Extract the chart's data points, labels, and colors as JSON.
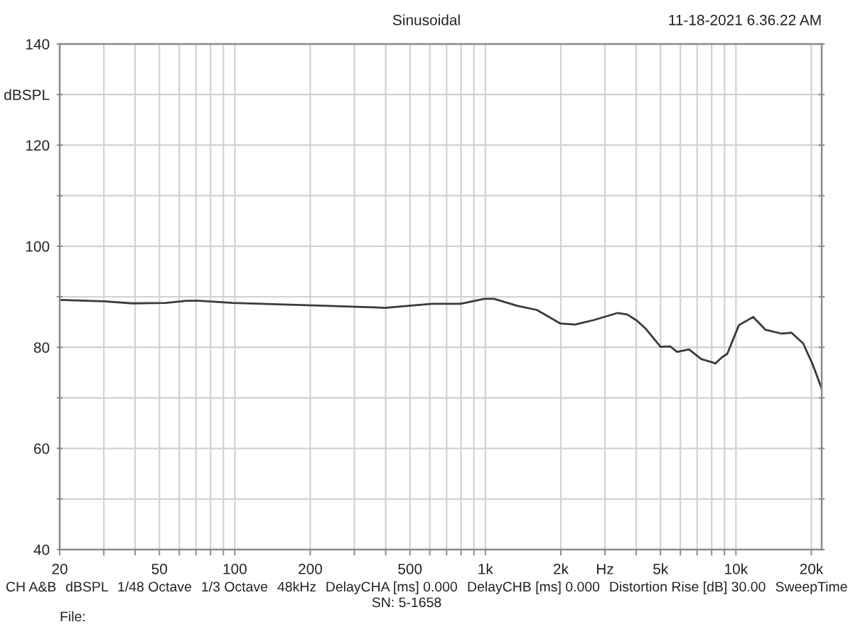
{
  "chart_data": {
    "type": "line",
    "title": "Sinusoidal",
    "annotations": [
      "11-18-2021 6.36.22 AM",
      "CH A&B",
      "dBSPL",
      "1/48 Octave",
      "1/3 Octave",
      "48kHz",
      "DelayCHA [ms] 0.000",
      "DelayCHB [ms] 0.000",
      "Distortion Rise [dB] 30.00",
      "SweepTime",
      "SN: 5-1658",
      "File:"
    ],
    "x": [
      20,
      30,
      39,
      53,
      64,
      72,
      98,
      205,
      362,
      396,
      613,
      796,
      889,
      991,
      1082,
      1346,
      1604,
      1994,
      2274,
      2712,
      3372,
      3682,
      4020,
      4380,
      5000,
      5460,
      5820,
      6500,
      7260,
      8090,
      8270,
      8830,
      9230,
      10280,
      11720,
      13100,
      15240,
      16640,
      18540,
      20260,
      22000
    ],
    "values": [
      89.4,
      89.1,
      88.7,
      88.8,
      89.2,
      89.2,
      88.8,
      88.3,
      87.9,
      87.8,
      88.6,
      88.6,
      89.1,
      89.6,
      89.6,
      88.2,
      87.4,
      84.7,
      84.5,
      85.4,
      86.8,
      86.5,
      85.3,
      83.6,
      80.1,
      80.2,
      79.1,
      79.6,
      77.7,
      77.0,
      76.8,
      78.1,
      78.7,
      84.4,
      86.0,
      83.5,
      82.7,
      82.9,
      80.8,
      76.6,
      71.8
    ],
    "color": "#3a3a3a",
    "log": "x",
    "grid": true,
    "xlim": [
      20,
      22000
    ],
    "xticks": [
      20,
      {
        "value": 30,
        "label": null
      },
      {
        "value": 40,
        "label": null
      },
      50,
      {
        "value": 60,
        "label": null
      },
      {
        "value": 70,
        "label": null
      },
      {
        "value": 80,
        "label": null
      },
      {
        "value": 90,
        "label": null
      },
      100,
      200,
      {
        "value": 300,
        "label": null
      },
      {
        "value": 400,
        "label": null
      },
      500,
      {
        "value": 600,
        "label": null
      },
      {
        "value": 700,
        "label": null
      },
      {
        "value": 800,
        "label": null
      },
      {
        "value": 900,
        "label": null
      },
      {
        "value": 1000,
        "label": "1k"
      },
      {
        "value": 2000,
        "label": "2k"
      },
      {
        "value": 3000,
        "label": "Hz"
      },
      {
        "value": 4000,
        "label": null
      },
      {
        "value": 5000,
        "label": "5k"
      },
      {
        "value": 6000,
        "label": null
      },
      {
        "value": 7000,
        "label": null
      },
      {
        "value": 8000,
        "label": null
      },
      {
        "value": 9000,
        "label": null
      },
      {
        "value": 10000,
        "label": "10k"
      },
      {
        "value": 20000,
        "label": "20k"
      }
    ],
    "ylim": [
      40,
      140
    ],
    "yticks": [
      40,
      {
        "value": 50,
        "label": null
      },
      60,
      {
        "value": 70,
        "label": null
      },
      80,
      {
        "value": 90,
        "label": null
      },
      100,
      {
        "value": 110,
        "label": null
      },
      120,
      {
        "value": 130,
        "label": "dBSPL"
      },
      140
    ]
  }
}
